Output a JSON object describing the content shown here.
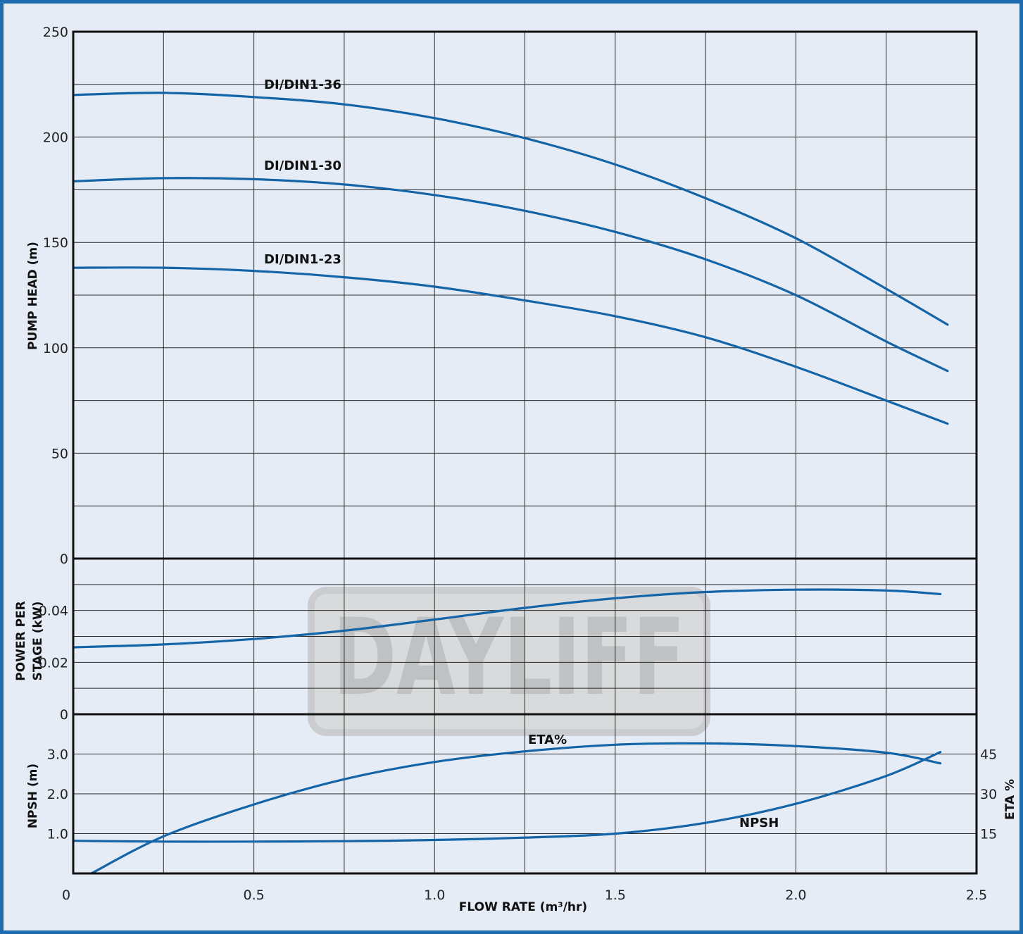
{
  "colors": {
    "background": "#e6ecf6",
    "frame": "#1e6bb0",
    "curve": "#1464a8",
    "watermark": "#b3b3b3"
  },
  "watermark": {
    "text": "DAYLIFF"
  },
  "chart_data": [
    {
      "type": "line",
      "panel": "head",
      "title": "",
      "xlabel": "",
      "ylabel": "PUMP HEAD (m)",
      "xlim": [
        0,
        2.5
      ],
      "ylim": [
        0,
        250
      ],
      "yticks": [
        "0",
        "50",
        "100",
        "150",
        "200",
        "250"
      ],
      "grid": true,
      "series": [
        {
          "name": "DI/DIN1-36",
          "x": [
            0,
            0.25,
            0.5,
            0.75,
            1.0,
            1.25,
            1.5,
            1.75,
            2.0,
            2.25,
            2.42
          ],
          "y": [
            220,
            221,
            219,
            215.5,
            209,
            199.5,
            187,
            171,
            152,
            128,
            111
          ]
        },
        {
          "name": "DI/DIN1-30",
          "x": [
            0,
            0.25,
            0.5,
            0.75,
            1.0,
            1.25,
            1.5,
            1.75,
            2.0,
            2.25,
            2.42
          ],
          "y": [
            179,
            180.5,
            180,
            177.5,
            172.5,
            165,
            155,
            142,
            125,
            103,
            89
          ]
        },
        {
          "name": "DI/DIN1-23",
          "x": [
            0,
            0.25,
            0.5,
            0.75,
            1.0,
            1.25,
            1.5,
            1.75,
            2.0,
            2.25,
            2.42
          ],
          "y": [
            138,
            138,
            136.5,
            133.5,
            129,
            122.5,
            115,
            105,
            91,
            75,
            64
          ]
        }
      ]
    },
    {
      "type": "line",
      "panel": "power",
      "title": "",
      "xlabel": "",
      "ylabel": "POWER PER STAGE (kW)",
      "ylabel_lines": [
        "POWER PER",
        "STAGE (kW)"
      ],
      "xlim": [
        0,
        2.5
      ],
      "ylim": [
        0,
        0.06
      ],
      "yticks": [
        "0",
        "0.02",
        "0.04"
      ],
      "grid": true,
      "series": [
        {
          "x": [
            0,
            0.25,
            0.5,
            0.75,
            1.0,
            1.25,
            1.5,
            1.75,
            2.0,
            2.25,
            2.4
          ],
          "y": [
            0.0258,
            0.0269,
            0.029,
            0.0322,
            0.0365,
            0.041,
            0.0447,
            0.0471,
            0.048,
            0.0477,
            0.0463
          ]
        }
      ]
    },
    {
      "type": "line",
      "panel": "npsh_eta",
      "title": "",
      "xlabel": "FLOW RATE (m³/hr)",
      "ylabel": "NPSH (m)",
      "y2label": "ETA %",
      "xlim": [
        0,
        2.5
      ],
      "xticks": [
        "0",
        "0.5",
        "1.0",
        "1.5",
        "2.0",
        "2.5"
      ],
      "ylim": [
        0,
        4.0
      ],
      "yticks": [
        "1.0",
        "2.0",
        "3.0"
      ],
      "y2lim": [
        0,
        60
      ],
      "y2ticks": [
        "15",
        "30",
        "45"
      ],
      "grid": true,
      "series": [
        {
          "name": "ETA%",
          "axis": "right",
          "x": [
            0.05,
            0.25,
            0.5,
            0.75,
            1.0,
            1.25,
            1.5,
            1.75,
            2.0,
            2.25,
            2.4
          ],
          "y": [
            0,
            14,
            26,
            35.5,
            42,
            46,
            48.5,
            49,
            48,
            45.5,
            41.5
          ]
        },
        {
          "name": "NPSH",
          "axis": "left",
          "x": [
            0,
            0.25,
            0.5,
            0.75,
            1.0,
            1.25,
            1.5,
            1.75,
            2.0,
            2.25,
            2.4
          ],
          "y": [
            0.82,
            0.8,
            0.8,
            0.81,
            0.84,
            0.9,
            1.0,
            1.27,
            1.75,
            2.45,
            3.05
          ]
        }
      ]
    }
  ]
}
